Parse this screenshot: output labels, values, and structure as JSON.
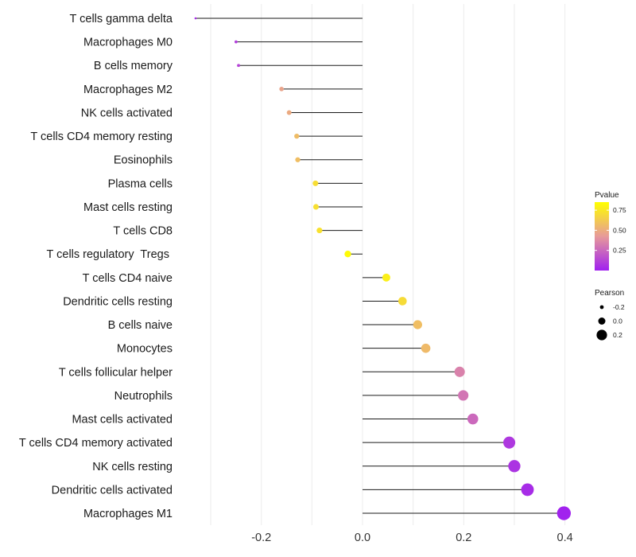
{
  "chart_data": {
    "type": "lollipop",
    "title": "",
    "xlabel": "",
    "ylabel": "",
    "xlim": [
      -0.36,
      0.42
    ],
    "x_ticks": [
      -0.2,
      0.0,
      0.2,
      0.4
    ],
    "x_tick_labels": [
      "-0.2",
      "0.0",
      "0.2",
      "0.4"
    ],
    "grid": true,
    "categories": [
      "T cells gamma delta",
      "Macrophages M0",
      "B cells memory",
      "Macrophages M2",
      "NK cells activated",
      "T cells CD4 memory resting",
      "Eosinophils",
      "Plasma cells",
      "Mast cells resting",
      "T cells CD8",
      "T cells regulatory  Tregs ",
      "T cells CD4 naive",
      "Dendritic cells resting",
      "B cells naive",
      "Monocytes",
      "T cells follicular helper",
      "Neutrophils",
      "Mast cells activated",
      "T cells CD4 memory activated",
      "NK cells resting",
      "Dendritic cells activated",
      "Macrophages M1"
    ],
    "pearson": [
      -0.33,
      -0.25,
      -0.245,
      -0.16,
      -0.145,
      -0.13,
      -0.128,
      -0.093,
      -0.092,
      -0.085,
      -0.029,
      0.047,
      0.079,
      0.109,
      0.125,
      0.192,
      0.199,
      0.218,
      0.29,
      0.3,
      0.326,
      0.398
    ],
    "pvalue": [
      0.05,
      0.12,
      0.15,
      0.55,
      0.58,
      0.67,
      0.68,
      0.83,
      0.84,
      0.85,
      0.98,
      0.92,
      0.82,
      0.68,
      0.66,
      0.4,
      0.35,
      0.3,
      0.1,
      0.08,
      0.05,
      0.01
    ],
    "color_scale": {
      "low": "#a020f0",
      "mid": "#e79a9a",
      "high": "#ffff00"
    },
    "legend": {
      "pvalue_title": "Pvalue",
      "pvalue_breaks": [
        0.75,
        0.5,
        0.25
      ],
      "pvalue_labels": [
        "0.75",
        "0.50",
        "0.25"
      ],
      "pearson_title": "Pearson",
      "pearson_breaks": [
        -0.2,
        0.0,
        0.2
      ],
      "pearson_labels": [
        "-0.2",
        "0.0",
        "0.2"
      ],
      "position": "right"
    }
  }
}
